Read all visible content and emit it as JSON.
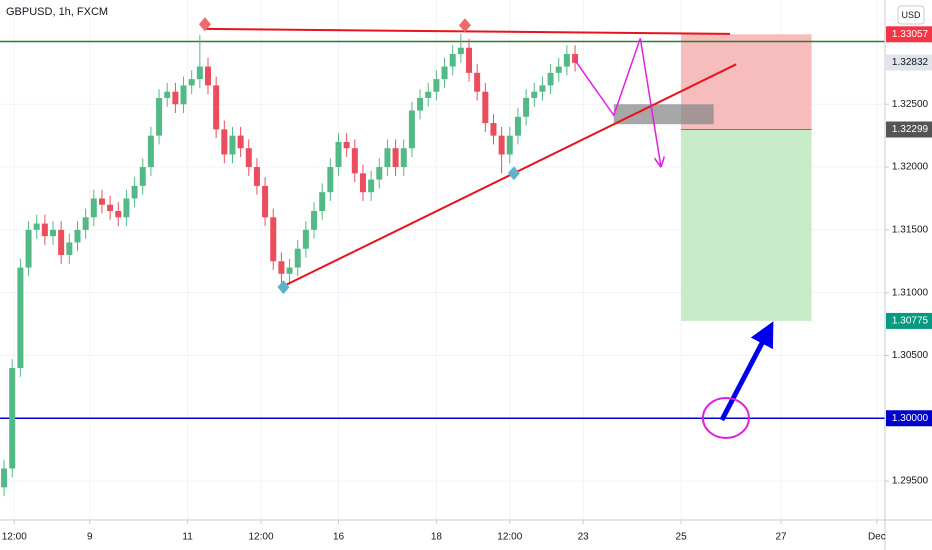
{
  "header": {
    "symbol": "GBPUSD, 1h, FXCM",
    "currency": "USD"
  },
  "chart_data": {
    "type": "candlestick",
    "x": [
      2,
      6,
      10,
      14,
      18,
      22,
      26,
      30,
      34,
      38,
      42,
      46,
      50,
      54,
      58,
      62,
      66,
      70,
      74,
      78,
      82,
      86,
      90,
      94,
      98,
      102,
      106,
      110,
      114,
      118,
      122,
      126,
      130,
      134,
      138,
      142,
      146,
      150,
      154,
      158,
      162,
      166,
      170,
      174,
      178,
      182,
      186,
      190,
      194,
      198,
      202,
      206,
      210,
      214,
      218,
      222,
      226,
      230,
      234,
      238,
      242,
      246,
      250,
      254,
      258,
      262,
      266,
      270,
      274,
      278,
      282
    ],
    "open": [
      1.2945,
      1.296,
      1.304,
      1.312,
      1.315,
      1.3155,
      1.3145,
      1.315,
      1.313,
      1.314,
      1.315,
      1.316,
      1.3175,
      1.317,
      1.3165,
      1.316,
      1.3175,
      1.3185,
      1.32,
      1.3225,
      1.3255,
      1.326,
      1.325,
      1.3265,
      1.327,
      1.328,
      1.3265,
      1.323,
      1.321,
      1.3225,
      1.3215,
      1.32,
      1.3185,
      1.316,
      1.3125,
      1.3115,
      1.312,
      1.3135,
      1.315,
      1.3165,
      1.318,
      1.32,
      1.322,
      1.3215,
      1.3195,
      1.318,
      1.319,
      1.32,
      1.3215,
      1.32,
      1.3215,
      1.3245,
      1.3255,
      1.326,
      1.327,
      1.328,
      1.329,
      1.3295,
      1.3275,
      1.326,
      1.3235,
      1.3225,
      1.321,
      1.3225,
      1.324,
      1.3255,
      1.326,
      1.3265,
      1.3275,
      1.328,
      1.329
    ],
    "high": [
      1.2967,
      1.3047,
      1.3127,
      1.3157,
      1.3162,
      1.3162,
      1.3157,
      1.3157,
      1.3147,
      1.3157,
      1.3167,
      1.3182,
      1.3182,
      1.3177,
      1.3172,
      1.3182,
      1.3192,
      1.3207,
      1.3232,
      1.3262,
      1.3267,
      1.3267,
      1.3272,
      1.3277,
      1.3305,
      1.3287,
      1.3272,
      1.3237,
      1.3232,
      1.3232,
      1.3222,
      1.3207,
      1.3192,
      1.3167,
      1.3132,
      1.3127,
      1.3142,
      1.3157,
      1.3172,
      1.3187,
      1.3207,
      1.3227,
      1.3227,
      1.3222,
      1.3202,
      1.3197,
      1.3207,
      1.3222,
      1.3222,
      1.3222,
      1.3252,
      1.3262,
      1.3267,
      1.3277,
      1.3287,
      1.3297,
      1.3306,
      1.3302,
      1.3282,
      1.3267,
      1.3242,
      1.3232,
      1.3232,
      1.3247,
      1.3262,
      1.3267,
      1.3272,
      1.3282,
      1.3287,
      1.3297,
      1.3297
    ],
    "low": [
      1.2938,
      1.2953,
      1.3033,
      1.3113,
      1.3143,
      1.3138,
      1.3138,
      1.3123,
      1.3123,
      1.3133,
      1.3143,
      1.3153,
      1.3163,
      1.3158,
      1.3153,
      1.3153,
      1.3168,
      1.3178,
      1.3193,
      1.3218,
      1.3248,
      1.3243,
      1.3243,
      1.3258,
      1.3263,
      1.3258,
      1.3223,
      1.3203,
      1.3203,
      1.3208,
      1.3193,
      1.3178,
      1.3153,
      1.3118,
      1.3108,
      1.3108,
      1.3113,
      1.3128,
      1.3143,
      1.3158,
      1.3173,
      1.3193,
      1.3208,
      1.3188,
      1.3173,
      1.3173,
      1.3183,
      1.3193,
      1.3193,
      1.3193,
      1.3208,
      1.3238,
      1.3248,
      1.3253,
      1.3263,
      1.3273,
      1.3283,
      1.3268,
      1.3253,
      1.3228,
      1.3218,
      1.3195,
      1.3203,
      1.3218,
      1.3233,
      1.3248,
      1.3253,
      1.3258,
      1.3268,
      1.3273,
      1.3276
    ],
    "close": [
      1.296,
      1.304,
      1.312,
      1.315,
      1.3155,
      1.3145,
      1.315,
      1.313,
      1.314,
      1.315,
      1.316,
      1.3175,
      1.317,
      1.3165,
      1.316,
      1.3175,
      1.3185,
      1.32,
      1.3225,
      1.3255,
      1.326,
      1.325,
      1.3265,
      1.327,
      1.328,
      1.3265,
      1.323,
      1.321,
      1.3225,
      1.3215,
      1.32,
      1.3185,
      1.316,
      1.3125,
      1.3115,
      1.312,
      1.3135,
      1.315,
      1.3165,
      1.318,
      1.32,
      1.322,
      1.3215,
      1.3195,
      1.318,
      1.319,
      1.32,
      1.3215,
      1.32,
      1.3215,
      1.3245,
      1.3255,
      1.326,
      1.327,
      1.328,
      1.329,
      1.3295,
      1.3275,
      1.326,
      1.3235,
      1.3225,
      1.321,
      1.3225,
      1.324,
      1.3255,
      1.326,
      1.3265,
      1.3275,
      1.328,
      1.329,
      1.3283
    ],
    "up_color": "#53b987",
    "down_color": "#eb4d5c",
    "xlim": [
      0,
      434
    ],
    "ylim": [
      1.2919,
      1.3333
    ],
    "xticks": [
      {
        "value": 7,
        "label": "12:00"
      },
      {
        "value": 44,
        "label": "9"
      },
      {
        "value": 92,
        "label": "11"
      },
      {
        "value": 128,
        "label": "12:00"
      },
      {
        "value": 166,
        "label": "16"
      },
      {
        "value": 214,
        "label": "18"
      },
      {
        "value": 250,
        "label": "12:00"
      },
      {
        "value": 286,
        "label": "23"
      },
      {
        "value": 334,
        "label": "25"
      },
      {
        "value": 383,
        "label": "27"
      },
      {
        "value": 430,
        "label": "Dec"
      }
    ],
    "yticks": [
      {
        "value": 1.325,
        "label": "1.32500"
      },
      {
        "value": 1.32,
        "label": "1.32000"
      },
      {
        "value": 1.315,
        "label": "1.31500"
      },
      {
        "value": 1.31,
        "label": "1.31000"
      },
      {
        "value": 1.305,
        "label": "1.30500"
      },
      {
        "value": 1.295,
        "label": "1.29500"
      }
    ],
    "price_lines": [
      {
        "value": 1.33,
        "color": "#2e7d32"
      },
      {
        "value": 1.3,
        "color": "#0000cc"
      }
    ],
    "price_labels": [
      {
        "value": 1.33057,
        "label": "1.33057",
        "color": "#f23645",
        "text_color": "#ffffff"
      },
      {
        "value": 1.32832,
        "label": "1.32832",
        "color": "#e0e3eb",
        "text_color": "#131722"
      },
      {
        "value": 1.32299,
        "label": "1.32299",
        "color": "#555555",
        "text_color": "#ffffff"
      },
      {
        "value": 1.30775,
        "label": "1.30775",
        "color": "#089981",
        "text_color": "#ffffff"
      },
      {
        "value": 1.3,
        "label": "1.30000",
        "color": "#0000cc",
        "text_color": "#ffffff"
      }
    ],
    "position": {
      "x": [
        334,
        398
      ],
      "stop": 1.33057,
      "entry": 1.32299,
      "target": 1.30775,
      "stop_color": "#f7bcbc",
      "target_color": "#c8ebc8"
    },
    "zones": [
      {
        "x": [
          301,
          350
        ],
        "y": [
          1.325,
          1.32341
        ],
        "color": "#8a8a8a"
      }
    ],
    "trend_lines": [
      {
        "color": "#e8141c",
        "x": [
          100,
          358
        ],
        "y": [
          1.331,
          1.3306
        ]
      },
      {
        "color": "#e8141c",
        "x": [
          139,
          361
        ],
        "y": [
          1.31052,
          1.32818
        ]
      }
    ],
    "markers": [
      {
        "color": "#ef6a6a",
        "x": 100.5,
        "y": 1.33137
      },
      {
        "color": "#ef6a6a",
        "x": 228,
        "y": 1.33129
      },
      {
        "color": "#5fb3c8",
        "x": 139,
        "y": 1.31044
      },
      {
        "color": "#5fb3c8",
        "x": 252,
        "y": 1.31951
      }
    ],
    "arrows": [
      {
        "color": "#e020e0",
        "x": [
          282,
          301,
          314,
          324
        ],
        "y": [
          1.3285,
          1.32412,
          1.33025,
          1.32015
        ]
      },
      {
        "color": "#0000ee",
        "x": [
          354,
          377
        ],
        "y": [
          1.29986,
          1.30702
        ]
      }
    ],
    "circles": [
      {
        "color": "#e020e0",
        "x": 356,
        "y": 1.30002
      }
    ]
  }
}
